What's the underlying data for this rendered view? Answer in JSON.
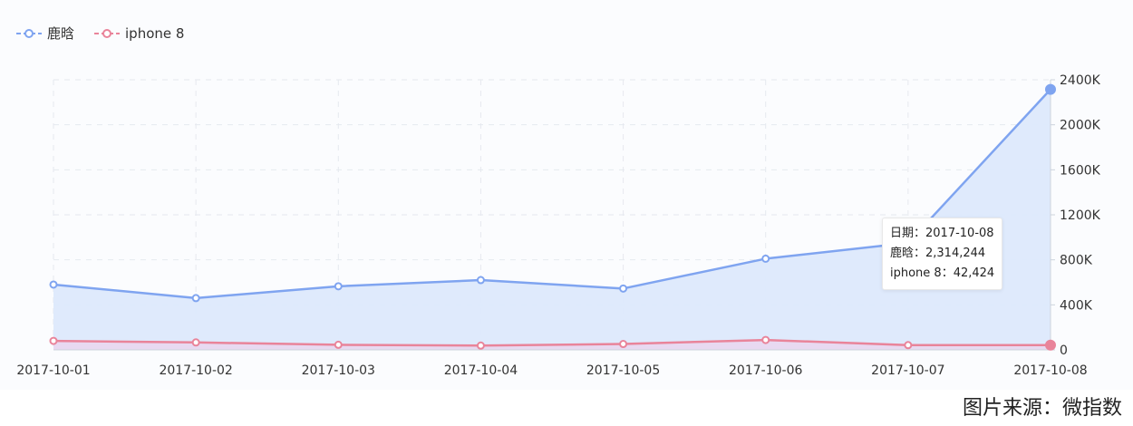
{
  "legend": {
    "items": [
      {
        "label": "鹿晗",
        "color": "#7fa4f0"
      },
      {
        "label": "iphone 8",
        "color": "#e9849a"
      }
    ]
  },
  "chart_data": {
    "type": "line",
    "x": [
      "2017-10-01",
      "2017-10-02",
      "2017-10-03",
      "2017-10-04",
      "2017-10-05",
      "2017-10-06",
      "2017-10-07",
      "2017-10-08"
    ],
    "series": [
      {
        "name": "鹿晗",
        "color": "#7fa4f0",
        "area_color": "#dde9fc",
        "values": [
          580000,
          460000,
          565000,
          620000,
          545000,
          810000,
          950000,
          2314244
        ]
      },
      {
        "name": "iphone 8",
        "color": "#e9849a",
        "area_color": "#ead6ee",
        "values": [
          80000,
          66000,
          45000,
          38000,
          52000,
          88000,
          42000,
          42424
        ]
      }
    ],
    "ylim": [
      0,
      2400000
    ],
    "yticks": [
      0,
      400000,
      800000,
      1200000,
      1600000,
      2000000,
      2400000
    ],
    "ytick_labels": [
      "0",
      "400K",
      "800K",
      "1200K",
      "1600K",
      "2000K",
      "2400K"
    ],
    "y_axis_side": "right",
    "grid": true,
    "legend_position": "top-left"
  },
  "tooltip": {
    "date_line": "日期：2017-10-08",
    "series1_line": "鹿晗：2,314,244",
    "series2_line": "iphone 8：42,424"
  },
  "source": "图片来源：微指数"
}
